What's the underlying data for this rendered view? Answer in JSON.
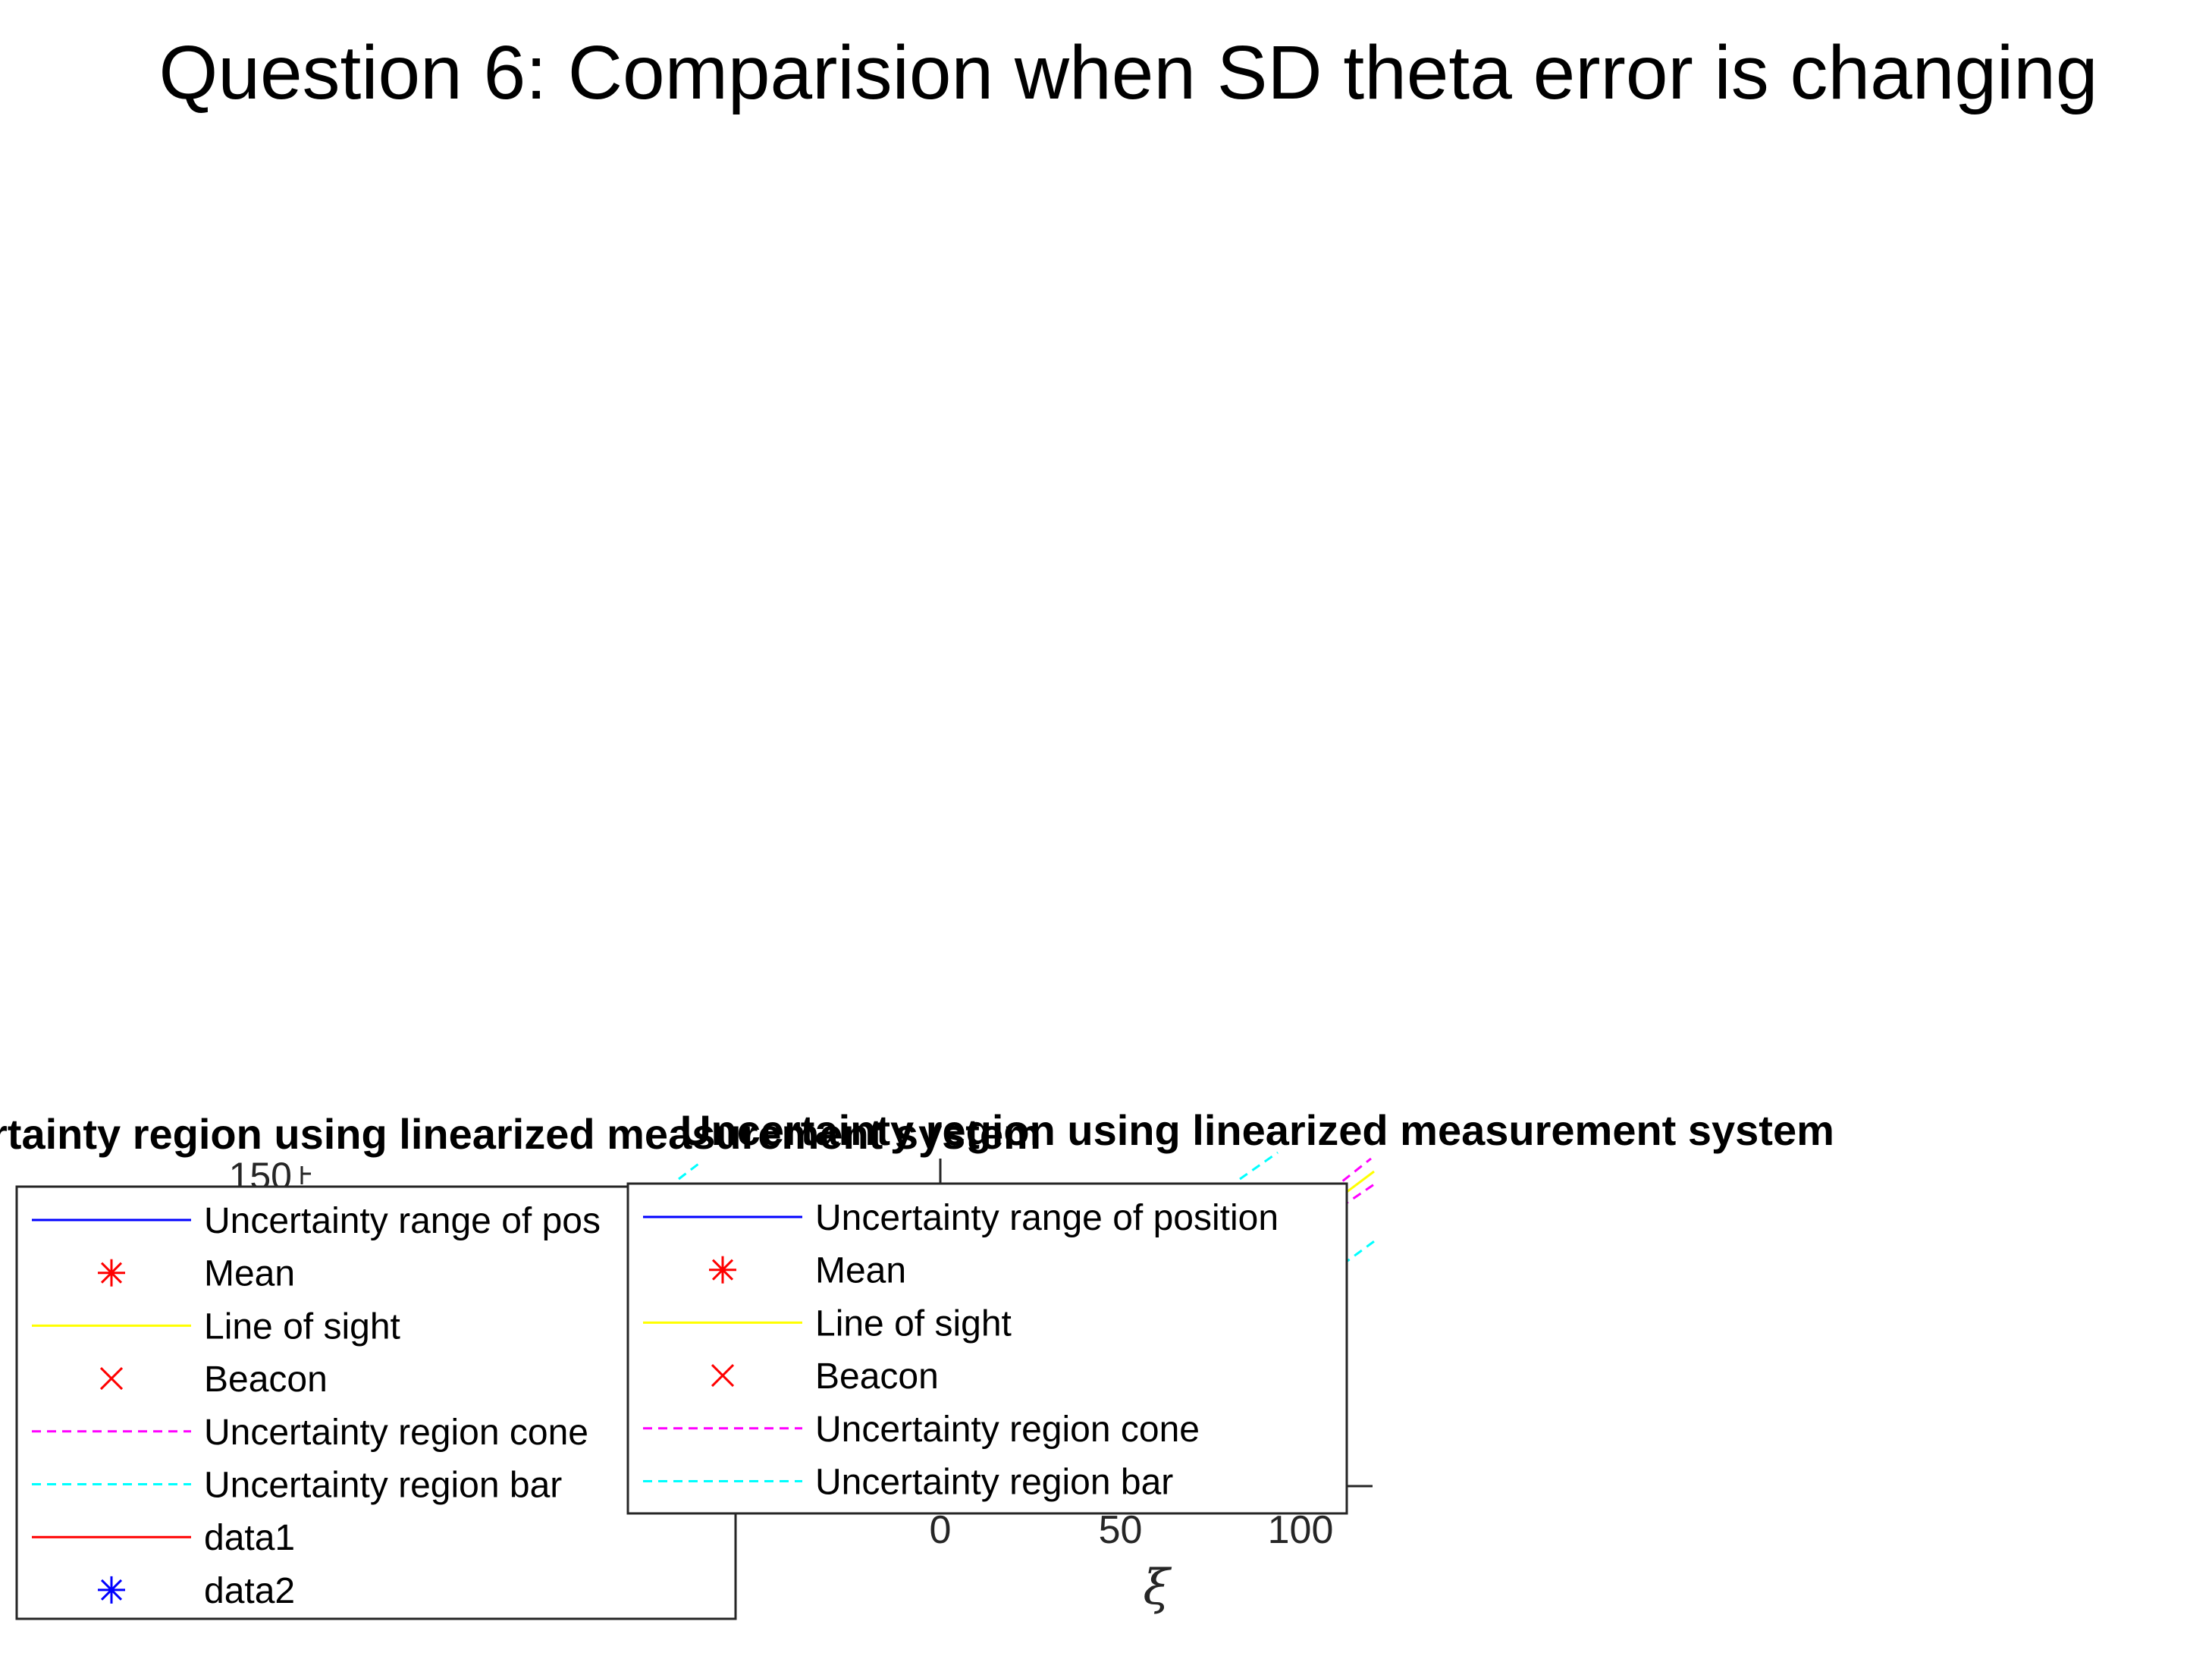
{
  "figure_title": "Question 6: Comparision when SD theta error is changing",
  "colors": {
    "uncertainty_range": "#0000ff",
    "mean": "#ff0000",
    "line_of_sight": "#ffff00",
    "beacon": "#ff0000",
    "cone": "#ff00ff",
    "bar": "#00ffff",
    "data1": "#ff0000",
    "data2": "#0000ff",
    "axis": "#262626"
  },
  "chart_data": [
    {
      "type": "line",
      "title": "Uncertainty region using linearized measurement system",
      "title_visible": "rtainty region using linearized measurement system",
      "xlabel": "",
      "ylabel": "",
      "y_tick_labels": [
        "150"
      ],
      "legend": {
        "placement": "bottom-left",
        "entries": [
          {
            "label": "Uncertainty range of position",
            "visible_label": "Uncertainty range of pos",
            "style": "solid-line",
            "color": "#0000ff"
          },
          {
            "label": "Mean",
            "style": "asterisk-marker",
            "color": "#ff0000"
          },
          {
            "label": "Line of sight",
            "style": "solid-line",
            "color": "#ffff00"
          },
          {
            "label": "Beacon",
            "style": "x-marker",
            "color": "#ff0000"
          },
          {
            "label": "Uncertainty region cone",
            "style": "dashed-line",
            "color": "#ff00ff"
          },
          {
            "label": "Uncertainty region bar",
            "style": "dashed-line",
            "color": "#00ffff"
          },
          {
            "label": "data1",
            "style": "solid-line",
            "color": "#ff0000"
          },
          {
            "label": "data2",
            "style": "asterisk-marker",
            "color": "#0000ff"
          }
        ]
      }
    },
    {
      "type": "line",
      "title": "Uncertainty region using linearized measurement system",
      "xlabel": "ξ",
      "ylabel": "",
      "x_tick_labels": [
        "0",
        "50",
        "100"
      ],
      "xlim": [
        0,
        120
      ],
      "legend": {
        "placement": "bottom-left",
        "entries": [
          {
            "label": "Uncertainty range of position",
            "style": "solid-line",
            "color": "#0000ff"
          },
          {
            "label": "Mean",
            "style": "asterisk-marker",
            "color": "#ff0000"
          },
          {
            "label": "Line of sight",
            "style": "solid-line",
            "color": "#ffff00"
          },
          {
            "label": "Beacon",
            "style": "x-marker",
            "color": "#ff0000"
          },
          {
            "label": "Uncertainty region cone",
            "style": "dashed-line",
            "color": "#ff00ff"
          },
          {
            "label": "Uncertainty region bar",
            "style": "dashed-line",
            "color": "#00ffff"
          }
        ]
      }
    }
  ]
}
